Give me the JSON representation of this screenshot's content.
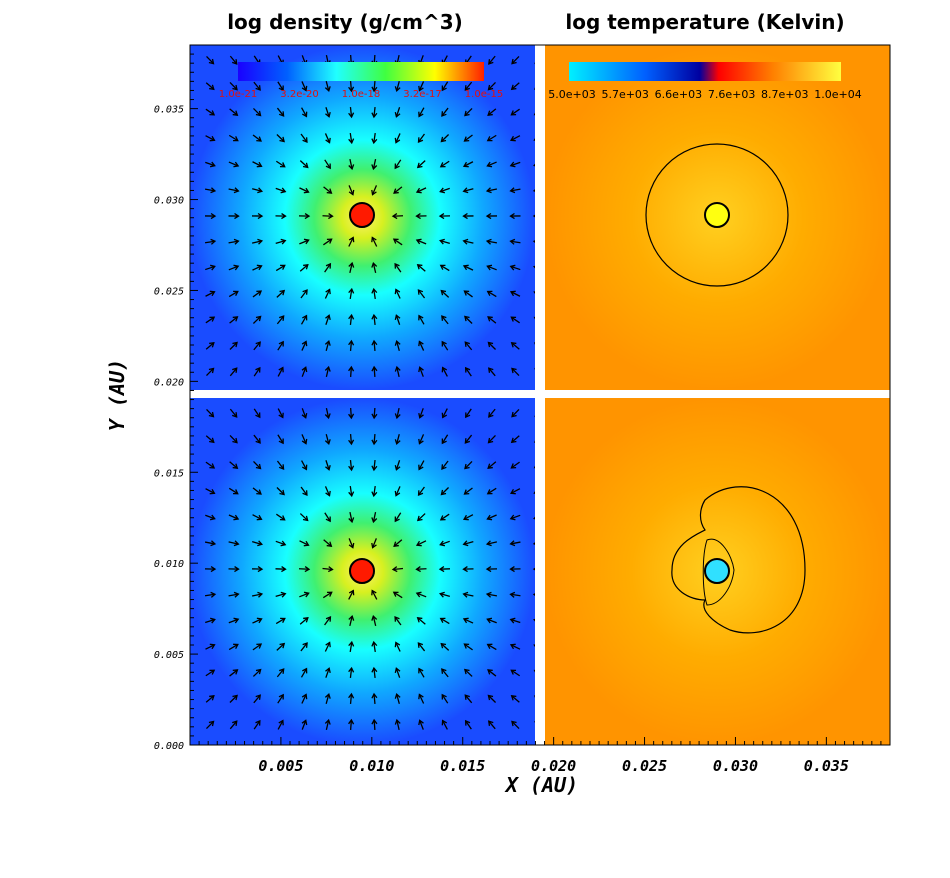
{
  "chart_data": {
    "type": "heatmap",
    "panels": [
      {
        "title": "log density (g/cm^3)",
        "row": "top",
        "column": "left",
        "colormap": "rainbow",
        "center": [
          0.0095,
          0.029
        ]
      },
      {
        "title": "log temperature (Kelvin)",
        "row": "top",
        "column": "right",
        "colormap": "cyan-blue-red-yellow",
        "center": [
          0.029,
          0.029
        ]
      },
      {
        "row": "bottom",
        "column": "left",
        "colormap": "rainbow",
        "center": [
          0.0095,
          0.0095
        ]
      },
      {
        "row": "bottom",
        "column": "right",
        "colormap": "cyan-blue-red-yellow",
        "center": [
          0.029,
          0.0095
        ]
      }
    ],
    "density_colorbar": {
      "ticks": [
        "1.0e-21",
        "3.2e-20",
        "1.0e-18",
        "3.2e-17",
        "1.0e-15"
      ],
      "label_color": "#e01010"
    },
    "temperature_colorbar": {
      "ticks": [
        "5.0e+03",
        "5.7e+03",
        "6.6e+03",
        "7.6e+03",
        "8.7e+03",
        "1.0e+04"
      ]
    },
    "xlabel": "X  (AU)",
    "ylabel": "Y  (AU)",
    "x_ticks": [
      "0.005",
      "0.010",
      "0.015",
      "0.020",
      "0.025",
      "0.030",
      "0.035"
    ],
    "x_tick_values": [
      0.005,
      0.01,
      0.015,
      0.02,
      0.025,
      0.03,
      0.035
    ],
    "y_ticks": [
      "0.000",
      "0.005",
      "0.010",
      "0.015",
      "0.020",
      "0.025",
      "0.030",
      "0.035"
    ],
    "y_tick_values": [
      0.0,
      0.005,
      0.01,
      0.015,
      0.02,
      0.025,
      0.03,
      0.035
    ],
    "xlim": [
      0.0,
      0.0385
    ],
    "ylim": [
      0.0,
      0.0385
    ],
    "vector_field": "velocity arrows on density panels",
    "colors": {
      "density_bg": "#1a4cff",
      "temperature_bg": "#ffa200",
      "sink": "#ff1a00",
      "hot_sink": "#ffff10",
      "cold_sink": "#30e0ff"
    }
  }
}
